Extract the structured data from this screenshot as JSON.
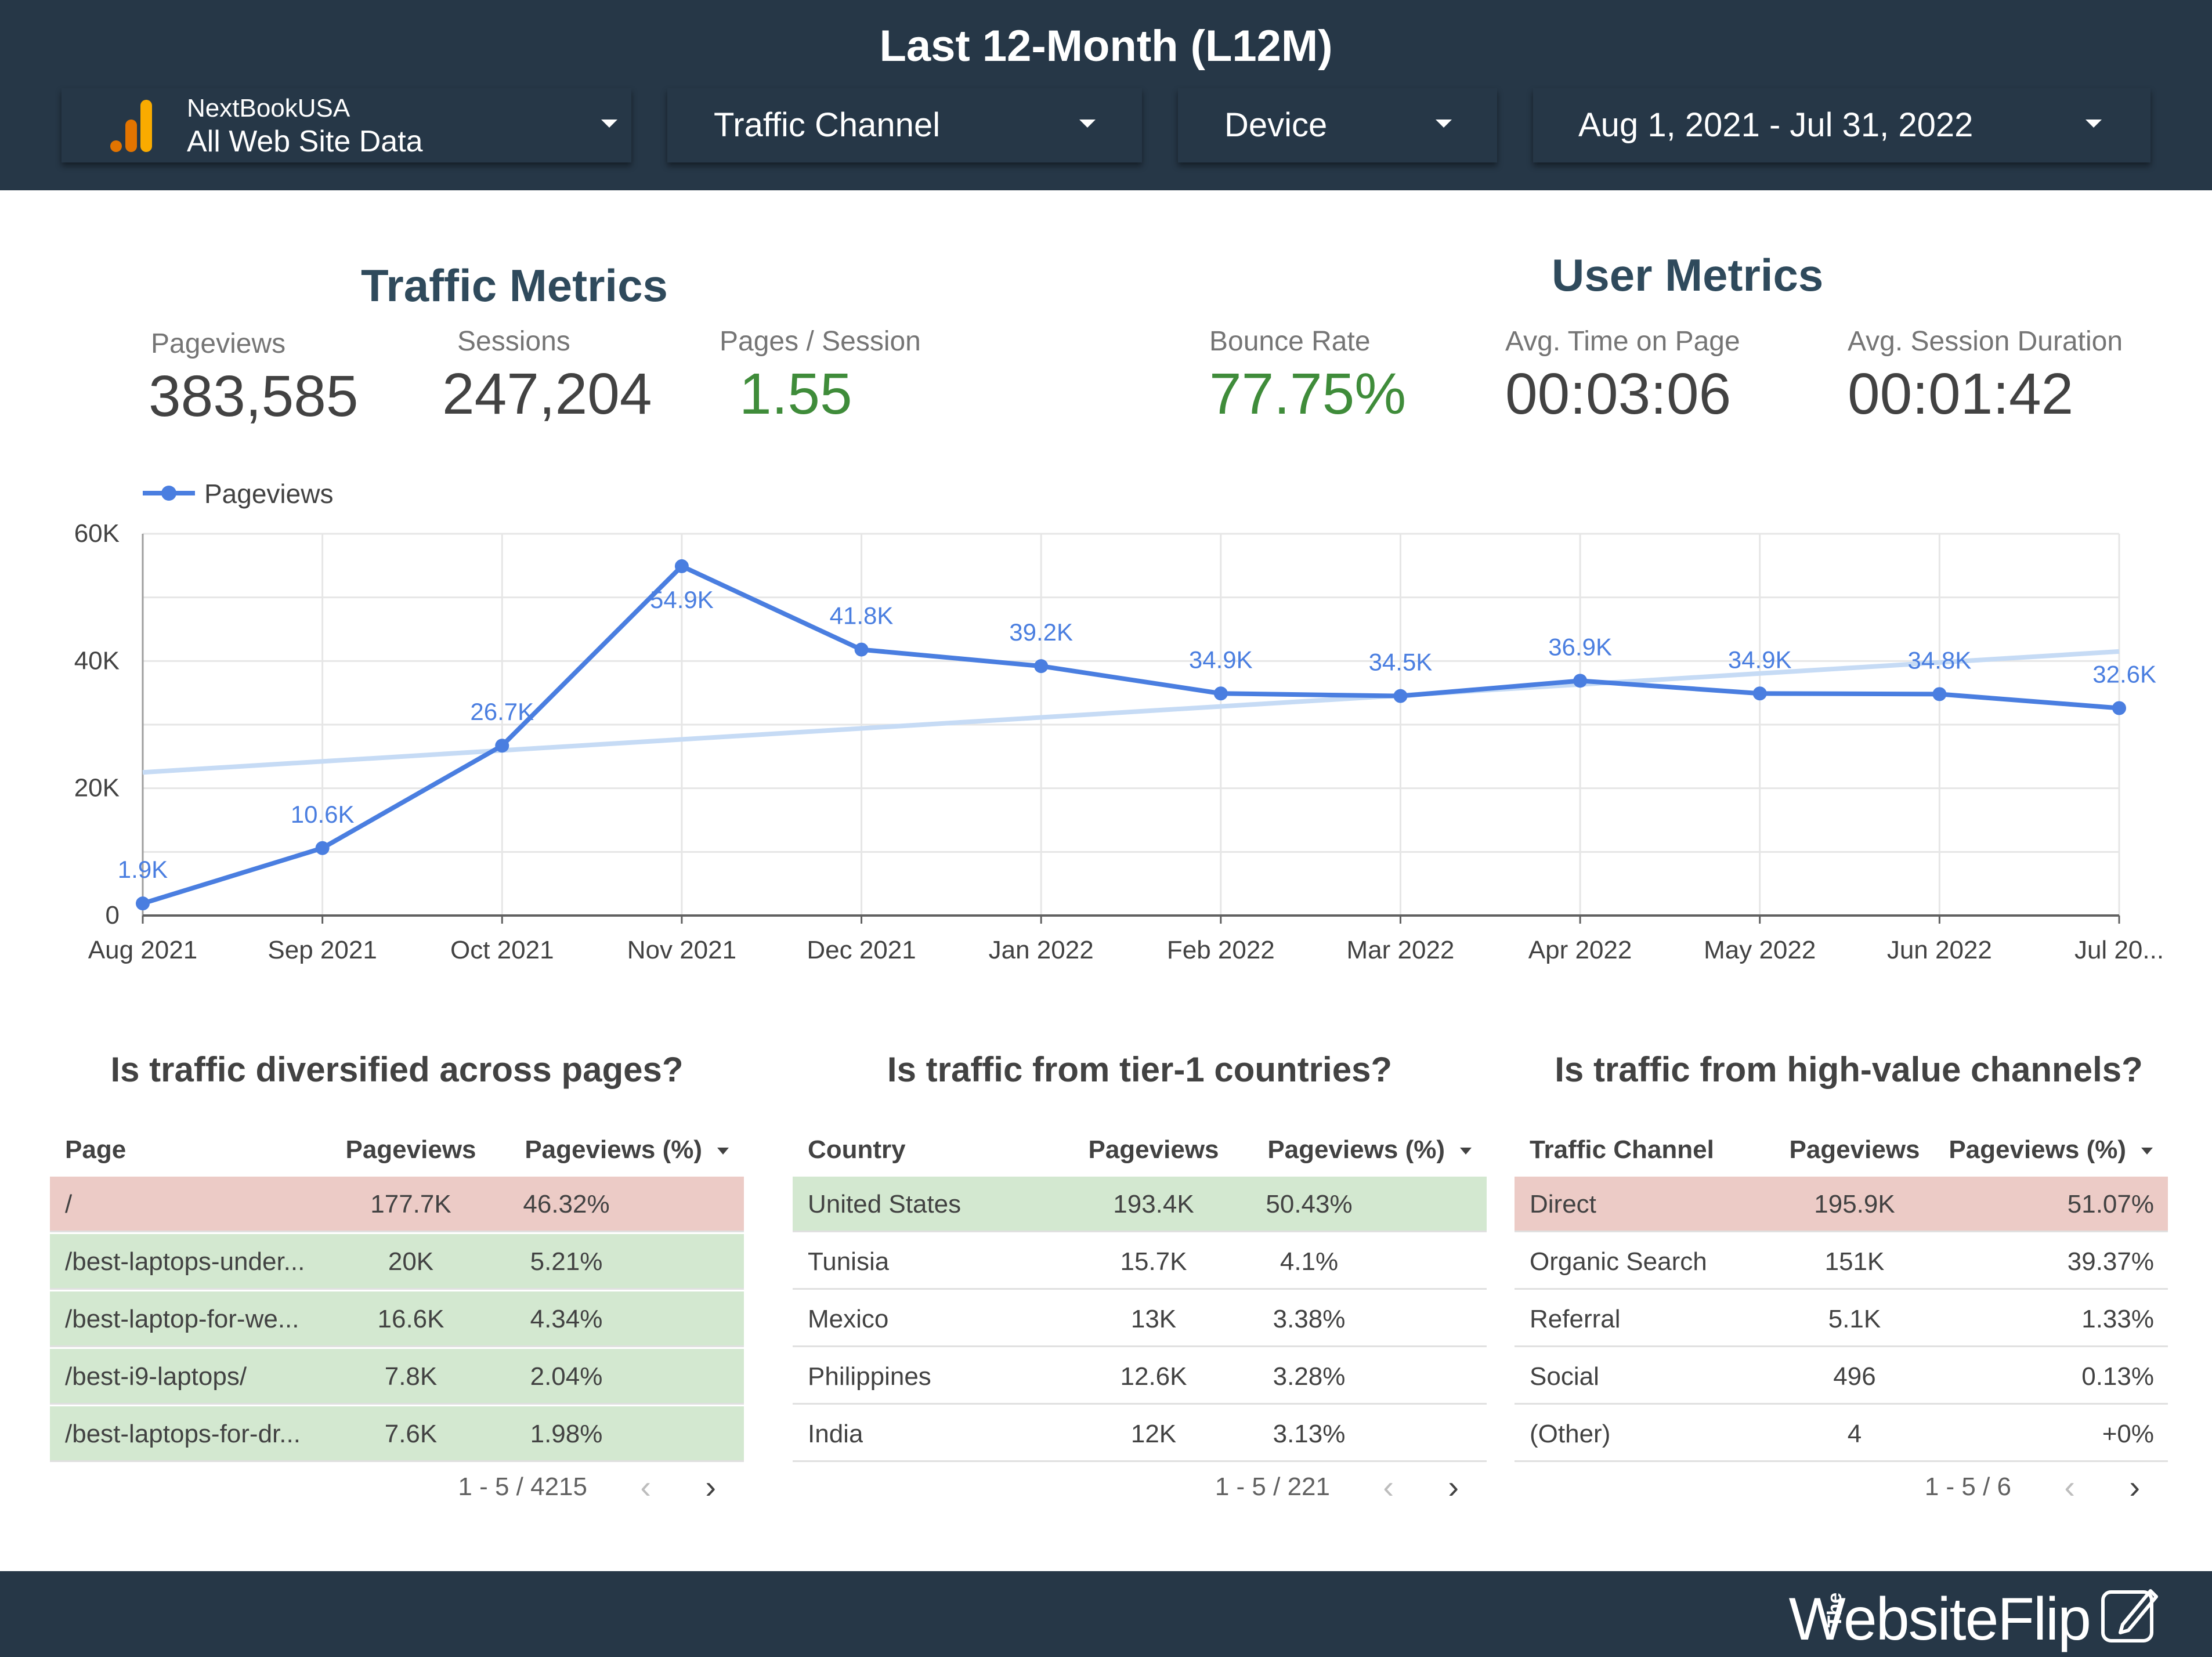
{
  "header": {
    "title": "Last 12-Month (L12M)",
    "data_source": {
      "account": "NextBookUSA",
      "view": "All Web Site Data",
      "icon": "analytics-bars-icon"
    },
    "filters": {
      "traffic_channel": "Traffic Channel",
      "device": "Device",
      "date_range": "Aug 1, 2021 - Jul 31, 2022"
    }
  },
  "traffic_metrics": {
    "title": "Traffic Metrics",
    "pageviews": {
      "label": "Pageviews",
      "value": "383,585"
    },
    "sessions": {
      "label": "Sessions",
      "value": "247,204"
    },
    "pages_per_session": {
      "label": "Pages / Session",
      "value": "1.55"
    }
  },
  "user_metrics": {
    "title": "User Metrics",
    "bounce_rate": {
      "label": "Bounce Rate",
      "value": "77.75%"
    },
    "avg_time_on_page": {
      "label": "Avg. Time on Page",
      "value": "00:03:06"
    },
    "avg_session_duration": {
      "label": "Avg. Session Duration",
      "value": "00:01:42"
    }
  },
  "chart_data": {
    "type": "line",
    "categories": [
      "Aug 2021",
      "Sep 2021",
      "Oct 2021",
      "Nov 2021",
      "Dec 2021",
      "Jan 2022",
      "Feb 2022",
      "Mar 2022",
      "Apr 2022",
      "May 2022",
      "Jun 2022",
      "Jul 20..."
    ],
    "series": [
      {
        "name": "Pageviews",
        "values": [
          1900,
          10600,
          26700,
          54900,
          41800,
          39200,
          34900,
          34500,
          36900,
          34900,
          34800,
          32600
        ],
        "labels": [
          "1.9K",
          "10.6K",
          "26.7K",
          "54.9K",
          "41.8K",
          "39.2K",
          "34.9K",
          "34.5K",
          "36.9K",
          "34.9K",
          "34.8K",
          "32.6K"
        ]
      }
    ],
    "trendline": {
      "start": 22500,
      "end": 41500
    },
    "y_ticks": [
      {
        "value": 0,
        "label": "0"
      },
      {
        "value": 20000,
        "label": "20K"
      },
      {
        "value": 40000,
        "label": "40K"
      },
      {
        "value": 60000,
        "label": "60K"
      }
    ],
    "ylim": [
      0,
      60000
    ],
    "grid": true,
    "legend": "top-left",
    "colors": {
      "series": "#4a7ee0",
      "trend": "#c6dbf5",
      "grid": "#e6e6e6"
    }
  },
  "tables": {
    "pages": {
      "title": "Is traffic diversified across pages?",
      "headers": [
        "Page",
        "Pageviews",
        "Pageviews (%)"
      ],
      "rows": [
        [
          "/",
          "177.7K",
          "46.32%"
        ],
        [
          "/best-laptops-under...",
          "20K",
          "5.21%"
        ],
        [
          "/best-laptop-for-we...",
          "16.6K",
          "4.34%"
        ],
        [
          "/best-i9-laptops/",
          "7.8K",
          "2.04%"
        ],
        [
          "/best-laptops-for-dr...",
          "7.6K",
          "1.98%"
        ]
      ],
      "row_colors": [
        "red",
        "green",
        "green",
        "green",
        "green"
      ],
      "pager": "1 - 5 / 4215"
    },
    "countries": {
      "title": "Is traffic from tier-1 countries?",
      "headers": [
        "Country",
        "Pageviews",
        "Pageviews (%)"
      ],
      "rows": [
        [
          "United States",
          "193.4K",
          "50.43%"
        ],
        [
          "Tunisia",
          "15.7K",
          "4.1%"
        ],
        [
          "Mexico",
          "13K",
          "3.38%"
        ],
        [
          "Philippines",
          "12.6K",
          "3.28%"
        ],
        [
          "India",
          "12K",
          "3.13%"
        ]
      ],
      "row_colors": [
        "green",
        "none",
        "none",
        "none",
        "none"
      ],
      "pager": "1 - 5 / 221"
    },
    "channels": {
      "title": "Is traffic from high-value channels?",
      "headers": [
        "Traffic Channel",
        "Pageviews",
        "Pageviews (%)"
      ],
      "rows": [
        [
          "Direct",
          "195.9K",
          "51.07%"
        ],
        [
          "Organic Search",
          "151K",
          "39.37%"
        ],
        [
          "Referral",
          "5.1K",
          "1.33%"
        ],
        [
          "Social",
          "496",
          "0.13%"
        ],
        [
          "(Other)",
          "4",
          "+0%"
        ]
      ],
      "row_colors": [
        "red",
        "none",
        "none",
        "none",
        "none"
      ],
      "pager": "1 - 5 / 6"
    },
    "pager_icons": {
      "prev": "‹",
      "next": "›"
    }
  },
  "footer": {
    "brand_prefix": "The",
    "brand": "WebsiteFlip",
    "icon": "pencil-edit-icon"
  }
}
